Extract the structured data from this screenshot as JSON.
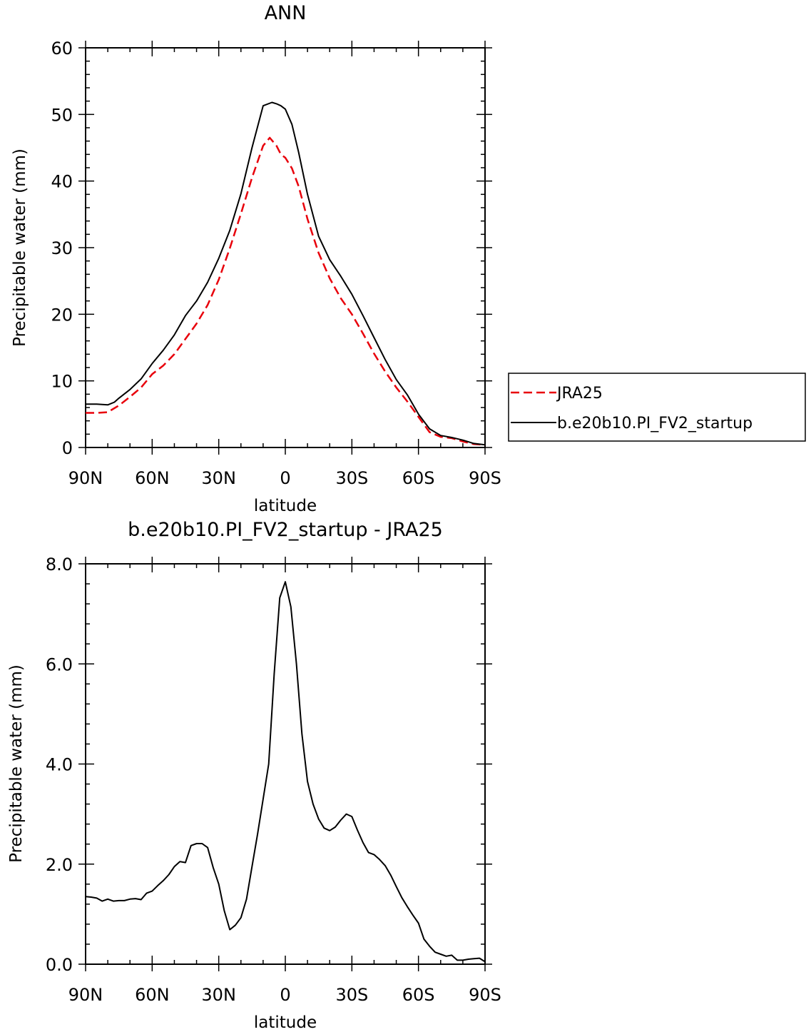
{
  "chart_data": [
    {
      "type": "line",
      "title": "ANN",
      "xlabel": "latitude",
      "ylabel": "Precipitable water (mm)",
      "xlim": [
        90,
        -90
      ],
      "ylim": [
        0,
        60
      ],
      "yticks": [
        "0",
        "10",
        "20",
        "30",
        "40",
        "50",
        "60"
      ],
      "xticks": [
        {
          "value": 90,
          "label": "90N"
        },
        {
          "value": 60,
          "label": "60N"
        },
        {
          "value": 30,
          "label": "30N"
        },
        {
          "value": 0,
          "label": "0"
        },
        {
          "value": -30,
          "label": "30S"
        },
        {
          "value": -60,
          "label": "60S"
        },
        {
          "value": -90,
          "label": "90S"
        }
      ],
      "series": [
        {
          "name": "JRA25",
          "color": "#e8000b",
          "style": "dashed",
          "x": [
            90,
            85,
            80,
            75,
            70,
            65,
            60,
            55,
            50,
            45,
            40,
            35,
            30,
            25,
            20,
            15,
            10,
            7,
            4,
            2,
            0,
            -3,
            -6,
            -10,
            -15,
            -20,
            -25,
            -30,
            -35,
            -40,
            -45,
            -50,
            -55,
            -60,
            -65,
            -70,
            -75,
            -80,
            -85,
            -90
          ],
          "values": [
            5.2,
            5.2,
            5.3,
            6.3,
            7.6,
            9.0,
            11.0,
            12.3,
            14.0,
            16.3,
            18.6,
            21.4,
            25.2,
            29.9,
            35.1,
            40.5,
            45.3,
            46.5,
            45.3,
            44.0,
            43.5,
            41.9,
            39.2,
            34.3,
            29.2,
            25.4,
            22.4,
            20.0,
            17.1,
            14.1,
            11.4,
            9.0,
            6.9,
            4.6,
            2.3,
            1.6,
            1.4,
            0.9,
            0.5,
            0.4
          ]
        },
        {
          "name": "b.e20b10.PI_FV2_startup",
          "color": "#000000",
          "style": "solid",
          "x": [
            90,
            85,
            80,
            77,
            75,
            70,
            65,
            60,
            55,
            50,
            45,
            40,
            35,
            30,
            25,
            20,
            15,
            10,
            6,
            4,
            2,
            0,
            -3,
            -6,
            -10,
            -15,
            -20,
            -25,
            -30,
            -35,
            -40,
            -45,
            -50,
            -55,
            -60,
            -65,
            -70,
            -75,
            -80,
            -85,
            -90
          ],
          "values": [
            6.5,
            6.5,
            6.4,
            6.8,
            7.4,
            8.7,
            10.3,
            12.6,
            14.6,
            16.9,
            19.8,
            22.0,
            24.8,
            28.4,
            32.6,
            38.1,
            45.0,
            51.3,
            51.8,
            51.6,
            51.3,
            50.8,
            48.5,
            44.3,
            38.0,
            31.7,
            28.2,
            25.7,
            23.0,
            19.8,
            16.5,
            13.2,
            10.2,
            7.9,
            5.0,
            2.8,
            1.8,
            1.5,
            1.1,
            0.6,
            0.4
          ]
        }
      ],
      "legend": "outside-right"
    },
    {
      "type": "line",
      "title": "b.e20b10.PI_FV2_startup - JRA25",
      "xlabel": "latitude",
      "ylabel": "Precipitable water (mm)",
      "xlim": [
        90,
        -90
      ],
      "ylim": [
        0,
        8
      ],
      "yticks": [
        "0.0",
        "2.0",
        "4.0",
        "6.0",
        "8.0"
      ],
      "xticks": [
        {
          "value": 90,
          "label": "90N"
        },
        {
          "value": 60,
          "label": "60N"
        },
        {
          "value": 30,
          "label": "30N"
        },
        {
          "value": 0,
          "label": "0"
        },
        {
          "value": -30,
          "label": "30S"
        },
        {
          "value": -60,
          "label": "60S"
        },
        {
          "value": -90,
          "label": "90S"
        }
      ],
      "series": [
        {
          "color": "#000000",
          "style": "solid",
          "x": [
            90,
            87.5,
            85,
            82.5,
            80,
            77.5,
            75,
            72.5,
            70,
            67.5,
            65,
            62.5,
            60,
            57.5,
            55,
            52.5,
            50,
            47.5,
            45,
            42.5,
            40,
            37.5,
            35,
            32.5,
            30,
            27.5,
            25,
            22.5,
            20,
            17.5,
            15,
            12.5,
            10,
            7.5,
            5,
            2.5,
            0,
            -2.5,
            -5,
            -7.5,
            -10,
            -12.5,
            -15,
            -17.5,
            -20,
            -22.5,
            -25,
            -27.5,
            -30,
            -32.5,
            -35,
            -37.5,
            -40,
            -42.5,
            -45,
            -47.5,
            -50,
            -52.5,
            -55,
            -57.5,
            -60,
            -62.5,
            -65,
            -67.5,
            -70,
            -72.5,
            -75,
            -77.5,
            -80,
            -82.5,
            -85,
            -87.5,
            -90
          ],
          "values": [
            1.35,
            1.34,
            1.32,
            1.26,
            1.3,
            1.26,
            1.27,
            1.27,
            1.3,
            1.31,
            1.29,
            1.42,
            1.46,
            1.57,
            1.67,
            1.79,
            1.95,
            2.05,
            2.03,
            2.37,
            2.41,
            2.41,
            2.33,
            1.93,
            1.6,
            1.07,
            0.69,
            0.78,
            0.93,
            1.3,
            1.95,
            2.6,
            3.3,
            4.0,
            5.8,
            7.32,
            7.64,
            7.14,
            6.0,
            4.6,
            3.65,
            3.2,
            2.9,
            2.72,
            2.67,
            2.74,
            2.88,
            3.0,
            2.95,
            2.68,
            2.43,
            2.23,
            2.19,
            2.09,
            1.97,
            1.78,
            1.55,
            1.33,
            1.15,
            0.98,
            0.82,
            0.5,
            0.36,
            0.24,
            0.2,
            0.16,
            0.18,
            0.08,
            0.08,
            0.1,
            0.11,
            0.12,
            0.05
          ]
        }
      ]
    }
  ]
}
